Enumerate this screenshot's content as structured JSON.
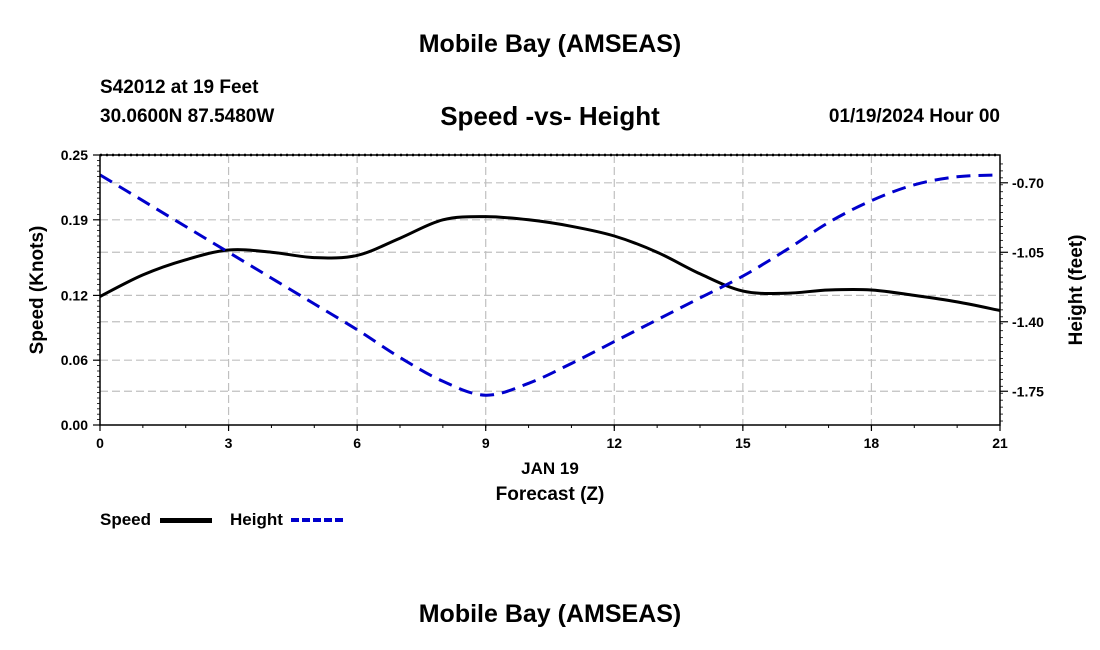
{
  "header": {
    "title": "Mobile Bay (AMSEAS)",
    "station": "S42012 at 19 Feet",
    "coordinates": "30.0600N  87.5480W",
    "datetime": "01/19/2024 Hour 00"
  },
  "footer": {
    "title": "Mobile Bay (AMSEAS)"
  },
  "chart_data": {
    "type": "line",
    "title": "Speed -vs- Height",
    "xlabel": "Forecast (Z)",
    "xlabel_date": "JAN 19",
    "ylabel_left": "Speed (Knots)",
    "ylabel_right": "Height (feet)",
    "x_ticks": [
      "0",
      "3",
      "6",
      "9",
      "12",
      "15",
      "18",
      "21"
    ],
    "xlim": [
      0,
      21
    ],
    "y_left_ticks": [
      "0.00",
      "0.06",
      "0.12",
      "0.19",
      "0.25"
    ],
    "y_left_lim": [
      0,
      0.25
    ],
    "y_right_ticks": [
      "-0.70",
      "-1.05",
      "-1.40",
      "-1.75"
    ],
    "y_right_lim": [
      -1.92,
      -0.56
    ],
    "grid": true,
    "legend_position": "bottom-left",
    "series": [
      {
        "name": "Speed",
        "axis": "left",
        "color": "#000000",
        "style": "solid",
        "x": [
          0,
          1,
          2,
          3,
          4,
          5,
          6,
          7,
          8,
          9,
          10,
          11,
          12,
          13,
          14,
          15,
          16,
          17,
          18,
          19,
          20,
          21
        ],
        "values": [
          0.119,
          0.139,
          0.153,
          0.162,
          0.16,
          0.155,
          0.157,
          0.173,
          0.19,
          0.193,
          0.19,
          0.184,
          0.175,
          0.16,
          0.14,
          0.124,
          0.122,
          0.125,
          0.125,
          0.12,
          0.114,
          0.106
        ]
      },
      {
        "name": "Height",
        "axis": "right",
        "color": "#0000cc",
        "style": "dashed",
        "x": [
          0,
          1,
          2,
          3,
          4,
          5,
          6,
          7,
          8,
          9,
          10,
          11,
          12,
          13,
          14,
          15,
          16,
          17,
          18,
          19,
          20,
          21
        ],
        "values": [
          -0.66,
          -0.79,
          -0.92,
          -1.05,
          -1.18,
          -1.31,
          -1.44,
          -1.58,
          -1.7,
          -1.77,
          -1.71,
          -1.61,
          -1.5,
          -1.39,
          -1.28,
          -1.17,
          -1.04,
          -0.9,
          -0.79,
          -0.71,
          -0.67,
          -0.66
        ]
      }
    ]
  }
}
